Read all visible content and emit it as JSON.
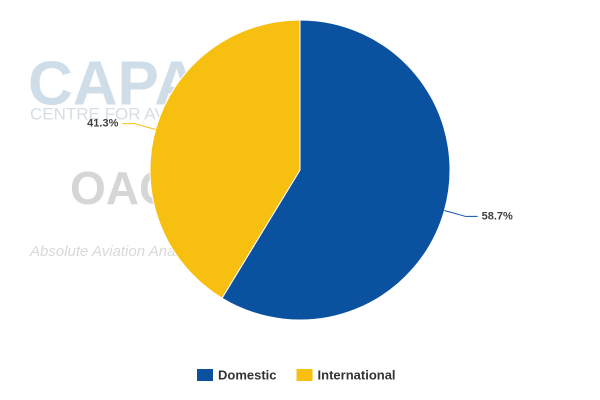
{
  "chart_data": {
    "type": "pie",
    "categories": [
      "Domestic",
      "International"
    ],
    "values": [
      58.7,
      41.3
    ],
    "value_labels": [
      "58.7%",
      "41.3%"
    ],
    "colors": [
      "#0a52a0",
      "#f7bf10"
    ],
    "watermarks": [
      "CAPA",
      "CENTRE FOR AVIATION",
      "OAG",
      "Absolute Aviation Analytics"
    ]
  }
}
